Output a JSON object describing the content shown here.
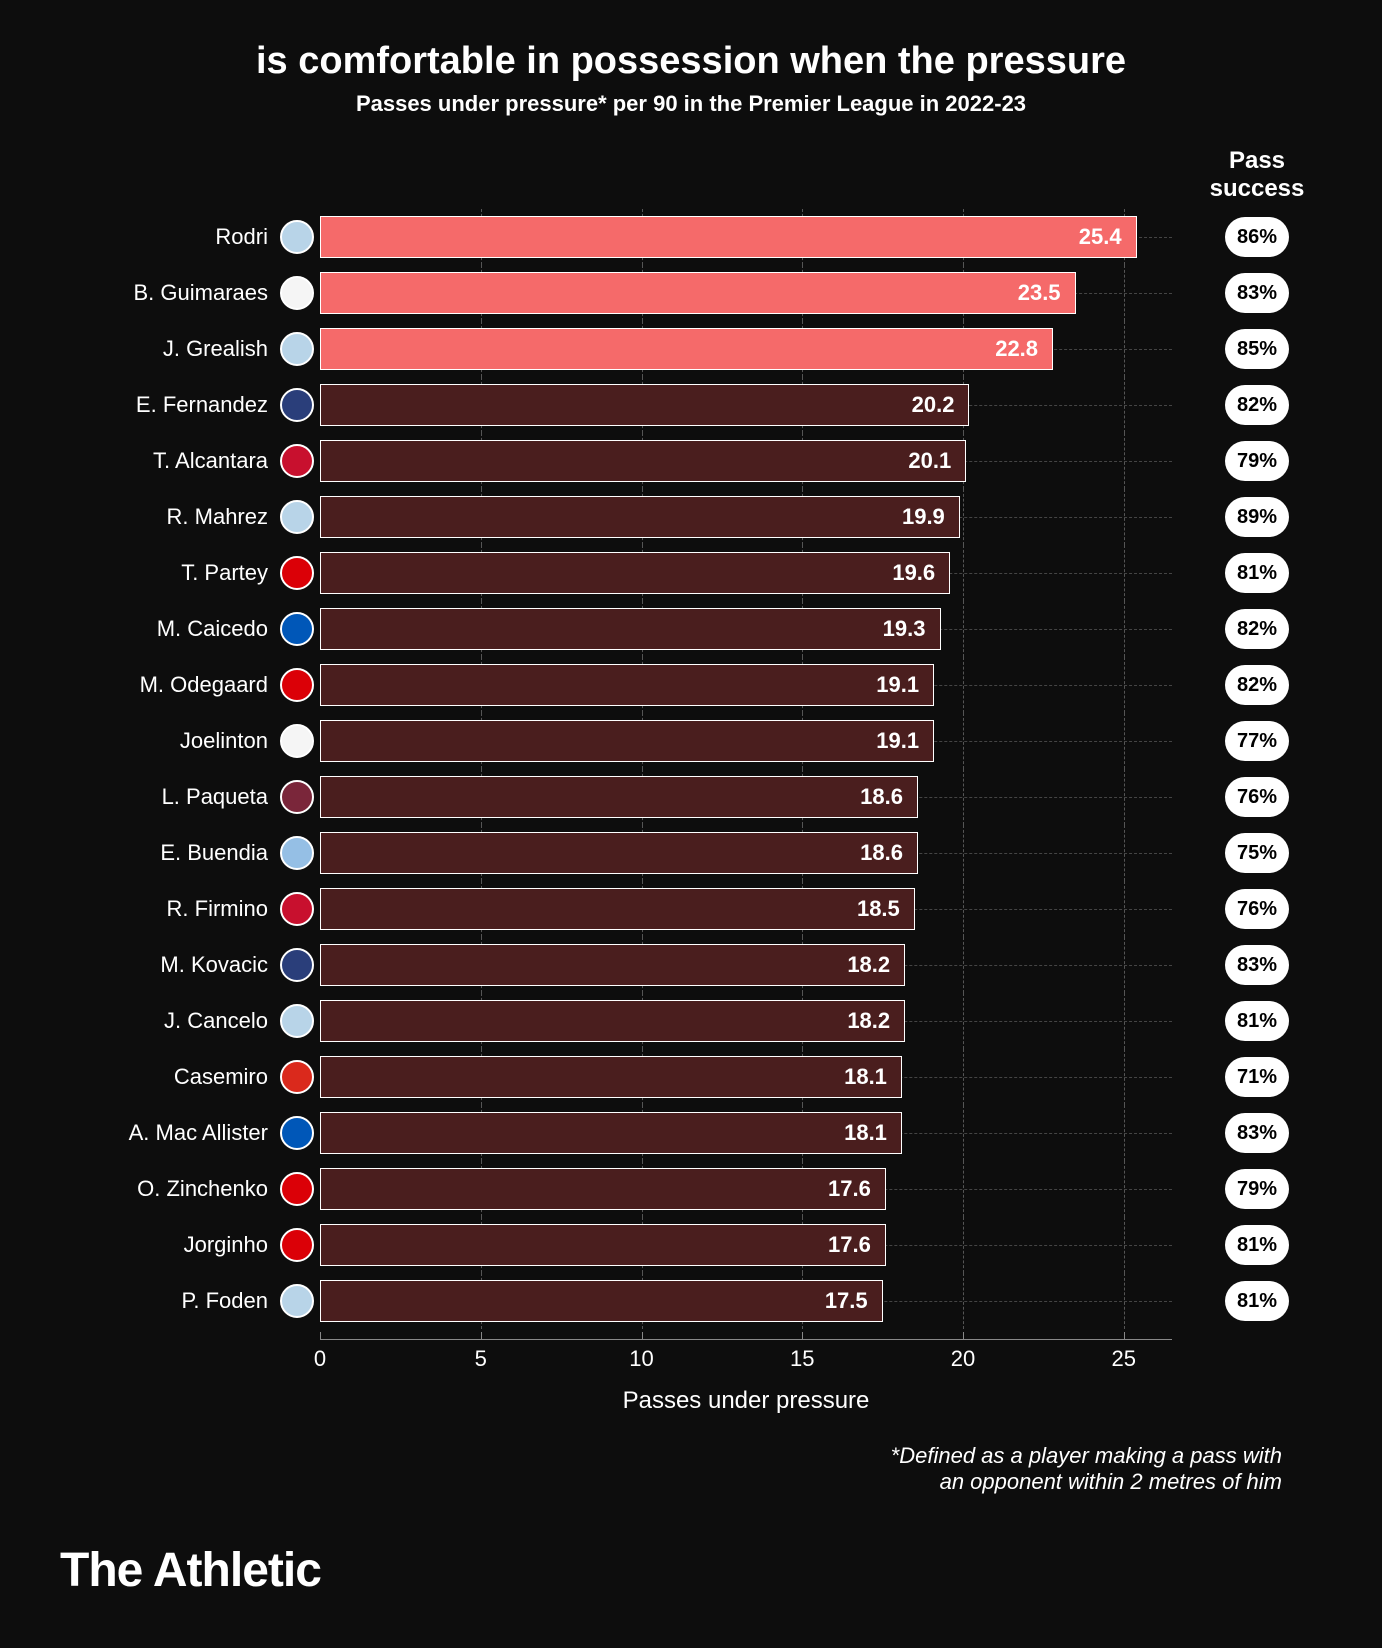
{
  "title": "is comfortable in possession when the pressure",
  "subtitle": "Passes under pressure* per 90 in the Premier League in 2022-23",
  "success_header": "Pass success",
  "x_label": "Passes under pressure",
  "footnote_line1": "*Defined as a player making a pass with",
  "footnote_line2": "an opponent within 2 metres of him",
  "brand": "The Athletic",
  "chart": {
    "type": "bar",
    "x_max": 26.5,
    "ticks": [
      0,
      5,
      10,
      15,
      20,
      25
    ],
    "highlight_color": "#f56a6a",
    "normal_color": "#4a1e1e",
    "bar_border": "#ffffff",
    "grid_color": "#555555",
    "background": "#0d0d0d"
  },
  "players": [
    {
      "name": "Rodri",
      "value": 25.4,
      "success": "86%",
      "highlight": true,
      "badge_bg": "#b8d4e8"
    },
    {
      "name": "B. Guimaraes",
      "value": 23.5,
      "success": "83%",
      "highlight": true,
      "badge_bg": "#f5f5f5"
    },
    {
      "name": "J. Grealish",
      "value": 22.8,
      "success": "85%",
      "highlight": true,
      "badge_bg": "#b8d4e8"
    },
    {
      "name": "E. Fernandez",
      "value": 20.2,
      "success": "82%",
      "highlight": false,
      "badge_bg": "#2a3e7a"
    },
    {
      "name": "T. Alcantara",
      "value": 20.1,
      "success": "79%",
      "highlight": false,
      "badge_bg": "#c8102e"
    },
    {
      "name": "R. Mahrez",
      "value": 19.9,
      "success": "89%",
      "highlight": false,
      "badge_bg": "#b8d4e8"
    },
    {
      "name": "T. Partey",
      "value": 19.6,
      "success": "81%",
      "highlight": false,
      "badge_bg": "#db0007"
    },
    {
      "name": "M. Caicedo",
      "value": 19.3,
      "success": "82%",
      "highlight": false,
      "badge_bg": "#0057b8"
    },
    {
      "name": "M. Odegaard",
      "value": 19.1,
      "success": "82%",
      "highlight": false,
      "badge_bg": "#db0007"
    },
    {
      "name": "Joelinton",
      "value": 19.1,
      "success": "77%",
      "highlight": false,
      "badge_bg": "#f5f5f5"
    },
    {
      "name": "L. Paqueta",
      "value": 18.6,
      "success": "76%",
      "highlight": false,
      "badge_bg": "#7a263a"
    },
    {
      "name": "E. Buendia",
      "value": 18.6,
      "success": "75%",
      "highlight": false,
      "badge_bg": "#95bfe5"
    },
    {
      "name": "R. Firmino",
      "value": 18.5,
      "success": "76%",
      "highlight": false,
      "badge_bg": "#c8102e"
    },
    {
      "name": "M. Kovacic",
      "value": 18.2,
      "success": "83%",
      "highlight": false,
      "badge_bg": "#2a3e7a"
    },
    {
      "name": "J. Cancelo",
      "value": 18.2,
      "success": "81%",
      "highlight": false,
      "badge_bg": "#b8d4e8"
    },
    {
      "name": "Casemiro",
      "value": 18.1,
      "success": "71%",
      "highlight": false,
      "badge_bg": "#da291c"
    },
    {
      "name": "A. Mac Allister",
      "value": 18.1,
      "success": "83%",
      "highlight": false,
      "badge_bg": "#0057b8"
    },
    {
      "name": "O. Zinchenko",
      "value": 17.6,
      "success": "79%",
      "highlight": false,
      "badge_bg": "#db0007"
    },
    {
      "name": "Jorginho",
      "value": 17.6,
      "success": "81%",
      "highlight": false,
      "badge_bg": "#db0007"
    },
    {
      "name": "P. Foden",
      "value": 17.5,
      "success": "81%",
      "highlight": false,
      "badge_bg": "#b8d4e8"
    }
  ]
}
